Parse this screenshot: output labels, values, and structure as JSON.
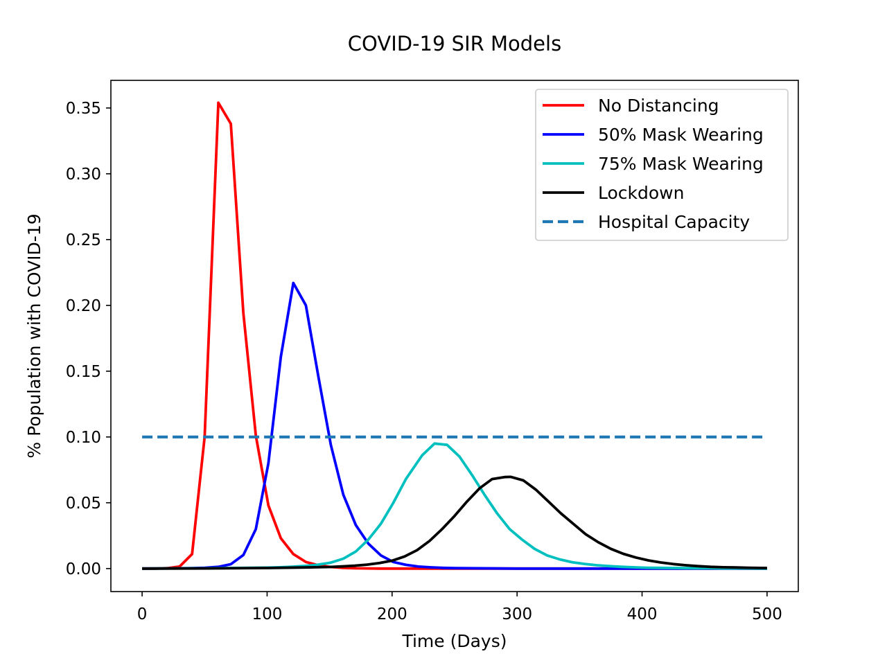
{
  "chart_data": {
    "type": "line",
    "title": "COVID-19 SIR Models",
    "xlabel": "Time (Days)",
    "ylabel": "% Population with COVID-19",
    "xlim": [
      -25,
      525
    ],
    "ylim": [
      -0.0175,
      0.371
    ],
    "xticks": [
      0,
      100,
      200,
      300,
      400,
      500
    ],
    "xtick_labels": [
      "0",
      "100",
      "200",
      "300",
      "400",
      "500"
    ],
    "yticks": [
      0.0,
      0.05,
      0.1,
      0.15,
      0.2,
      0.25,
      0.3,
      0.35
    ],
    "ytick_labels": [
      "0.00",
      "0.05",
      "0.10",
      "0.15",
      "0.20",
      "0.25",
      "0.30",
      "0.35"
    ],
    "grid": false,
    "legend_position": "top-right",
    "series": [
      {
        "name": "No Distancing",
        "color": "#ff0000",
        "style": "solid",
        "x": [
          0,
          10,
          20,
          30,
          40,
          50,
          61,
          71,
          81,
          91,
          101,
          111,
          121,
          131,
          141,
          151,
          161,
          171,
          181,
          191,
          201,
          251,
          301,
          351,
          401,
          451,
          500
        ],
        "y": [
          0.0,
          0.0,
          0.0003,
          0.0015,
          0.011,
          0.1,
          0.354,
          0.338,
          0.194,
          0.101,
          0.048,
          0.023,
          0.011,
          0.005,
          0.0025,
          0.0012,
          0.0005,
          0.0002,
          0.0001,
          0.0,
          0.0,
          0.0,
          0.0,
          0.0,
          0.0,
          0.0,
          0.0
        ]
      },
      {
        "name": "50% Mask Wearing",
        "color": "#0000ff",
        "style": "solid",
        "x": [
          0,
          20,
          40,
          50,
          61,
          71,
          81,
          91,
          101,
          111,
          121,
          131,
          141,
          151,
          161,
          171,
          181,
          191,
          201,
          211,
          221,
          231,
          241,
          251,
          301,
          351,
          401,
          451,
          500
        ],
        "y": [
          0.0,
          0.0001,
          0.0003,
          0.0006,
          0.0013,
          0.0033,
          0.0103,
          0.03,
          0.08,
          0.161,
          0.217,
          0.2,
          0.146,
          0.094,
          0.056,
          0.033,
          0.019,
          0.01,
          0.005,
          0.0028,
          0.0015,
          0.0009,
          0.0005,
          0.0003,
          0.0,
          0.0,
          0.0,
          0.0,
          0.0
        ]
      },
      {
        "name": "75% Mask Wearing",
        "color": "#00bfbf",
        "style": "solid",
        "x": [
          0,
          50,
          100,
          110,
          120,
          130,
          140,
          151,
          161,
          171,
          181,
          191,
          201,
          211,
          224,
          234,
          244,
          254,
          264,
          274,
          284,
          294,
          304,
          314,
          324,
          334,
          344,
          354,
          364,
          374,
          384,
          394,
          404,
          414,
          424,
          434,
          444,
          454,
          464,
          474,
          484,
          500
        ],
        "y": [
          0.0,
          0.0002,
          0.0007,
          0.001,
          0.0014,
          0.002,
          0.0028,
          0.0045,
          0.0075,
          0.013,
          0.022,
          0.034,
          0.05,
          0.068,
          0.086,
          0.095,
          0.094,
          0.085,
          0.071,
          0.056,
          0.042,
          0.03,
          0.022,
          0.015,
          0.01,
          0.007,
          0.0048,
          0.0035,
          0.0025,
          0.0018,
          0.0013,
          0.0009,
          0.0006,
          0.0005,
          0.0004,
          0.0003,
          0.0002,
          0.0002,
          0.0001,
          0.0001,
          0.0001,
          0.0
        ]
      },
      {
        "name": "Lockdown",
        "color": "#000000",
        "style": "solid",
        "x": [
          0,
          50,
          100,
          130,
          150,
          160,
          170,
          180,
          190,
          200,
          210,
          220,
          230,
          240,
          250,
          260,
          270,
          280,
          290,
          295,
          305,
          315,
          325,
          335,
          345,
          355,
          365,
          375,
          385,
          395,
          405,
          415,
          425,
          435,
          445,
          455,
          465,
          475,
          485,
          500
        ],
        "y": [
          0.0,
          0.0001,
          0.0004,
          0.0008,
          0.0012,
          0.0016,
          0.0022,
          0.003,
          0.0042,
          0.006,
          0.0092,
          0.014,
          0.021,
          0.03,
          0.04,
          0.051,
          0.061,
          0.068,
          0.0695,
          0.0697,
          0.067,
          0.06,
          0.051,
          0.042,
          0.034,
          0.026,
          0.02,
          0.015,
          0.0112,
          0.0084,
          0.0062,
          0.0046,
          0.0034,
          0.0025,
          0.0018,
          0.0013,
          0.001,
          0.0008,
          0.0006,
          0.0004
        ]
      },
      {
        "name": "Hospital Capacity",
        "color": "#1f77b4",
        "style": "dashed",
        "x": [
          0,
          500
        ],
        "y": [
          0.1,
          0.1
        ]
      }
    ]
  }
}
